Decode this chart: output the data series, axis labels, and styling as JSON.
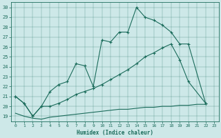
{
  "xlabel": "Humidex (Indice chaleur)",
  "bg_color": "#cde8e8",
  "line_color": "#1a6b5a",
  "xlim": [
    -0.5,
    23.5
  ],
  "ylim": [
    18.5,
    30.5
  ],
  "xticks": [
    0,
    1,
    2,
    3,
    4,
    5,
    6,
    7,
    8,
    9,
    10,
    11,
    12,
    13,
    14,
    15,
    16,
    17,
    18,
    19,
    20,
    21,
    22,
    23
  ],
  "yticks": [
    19,
    20,
    21,
    22,
    23,
    24,
    25,
    26,
    27,
    28,
    29,
    30
  ],
  "curve1_x": [
    0,
    1,
    2,
    3,
    4,
    5,
    6,
    7,
    8,
    9,
    10,
    11,
    12,
    13,
    14,
    15,
    16,
    17,
    18,
    19,
    20,
    22
  ],
  "curve1_y": [
    21.0,
    20.3,
    19.0,
    20.0,
    21.5,
    22.2,
    22.5,
    24.3,
    24.1,
    22.0,
    26.7,
    26.5,
    27.5,
    27.5,
    30.0,
    29.0,
    28.7,
    28.2,
    27.5,
    26.3,
    26.3,
    20.3
  ],
  "curve2_x": [
    0,
    1,
    2,
    3,
    4,
    5,
    6,
    7,
    8,
    9,
    10,
    11,
    12,
    13,
    14,
    15,
    16,
    17,
    18,
    19,
    20,
    22
  ],
  "curve2_y": [
    21.0,
    20.3,
    19.0,
    20.0,
    20.0,
    20.3,
    20.7,
    21.2,
    21.5,
    21.8,
    22.2,
    22.7,
    23.2,
    23.7,
    24.3,
    25.0,
    25.4,
    25.9,
    26.3,
    24.7,
    22.5,
    20.3
  ],
  "curve3_x": [
    0,
    1,
    2,
    3,
    4,
    5,
    6,
    7,
    8,
    9,
    10,
    11,
    12,
    13,
    14,
    15,
    16,
    17,
    18,
    19,
    20,
    21,
    22
  ],
  "curve3_y": [
    19.3,
    19.0,
    18.8,
    18.7,
    18.9,
    19.0,
    19.1,
    19.2,
    19.3,
    19.4,
    19.5,
    19.6,
    19.7,
    19.7,
    19.8,
    19.9,
    19.9,
    20.0,
    20.0,
    20.1,
    20.1,
    20.2,
    20.2
  ]
}
